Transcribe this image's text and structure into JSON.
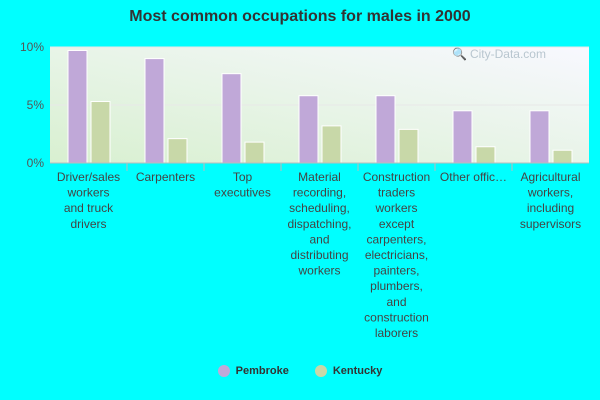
{
  "chart_data": {
    "type": "bar",
    "title": "Most common occupations for males in 2000",
    "categories": [
      [
        "Driver/sales",
        "workers",
        "and truck",
        "drivers"
      ],
      [
        "Carpenters"
      ],
      [
        "Top",
        "executives"
      ],
      [
        "Material",
        "recording,",
        "scheduling,",
        "dispatching,",
        "and",
        "distributing",
        "workers"
      ],
      [
        "Construction",
        "traders",
        "workers",
        "except",
        "carpenters,",
        "electricians,",
        "painters,",
        "plumbers,",
        "and",
        "construction",
        "laborers"
      ],
      [
        "Other offic…"
      ],
      [
        "Agricultural",
        "workers,",
        "including",
        "supervisors"
      ]
    ],
    "series": [
      {
        "name": "Pembroke",
        "color": "#c0a8d8",
        "values": [
          9.7,
          9.0,
          7.7,
          5.8,
          5.8,
          4.5,
          4.5
        ]
      },
      {
        "name": "Kentucky",
        "color": "#c8d8a8",
        "values": [
          5.3,
          2.1,
          1.8,
          3.2,
          2.9,
          1.4,
          1.1
        ]
      }
    ],
    "ylim": [
      0,
      10
    ],
    "yticks": [
      "0%",
      "5%",
      "10%"
    ],
    "grid": true,
    "legend_position": "bottom"
  },
  "watermark": {
    "text": "City-Data.com",
    "icon": "search-icon"
  }
}
